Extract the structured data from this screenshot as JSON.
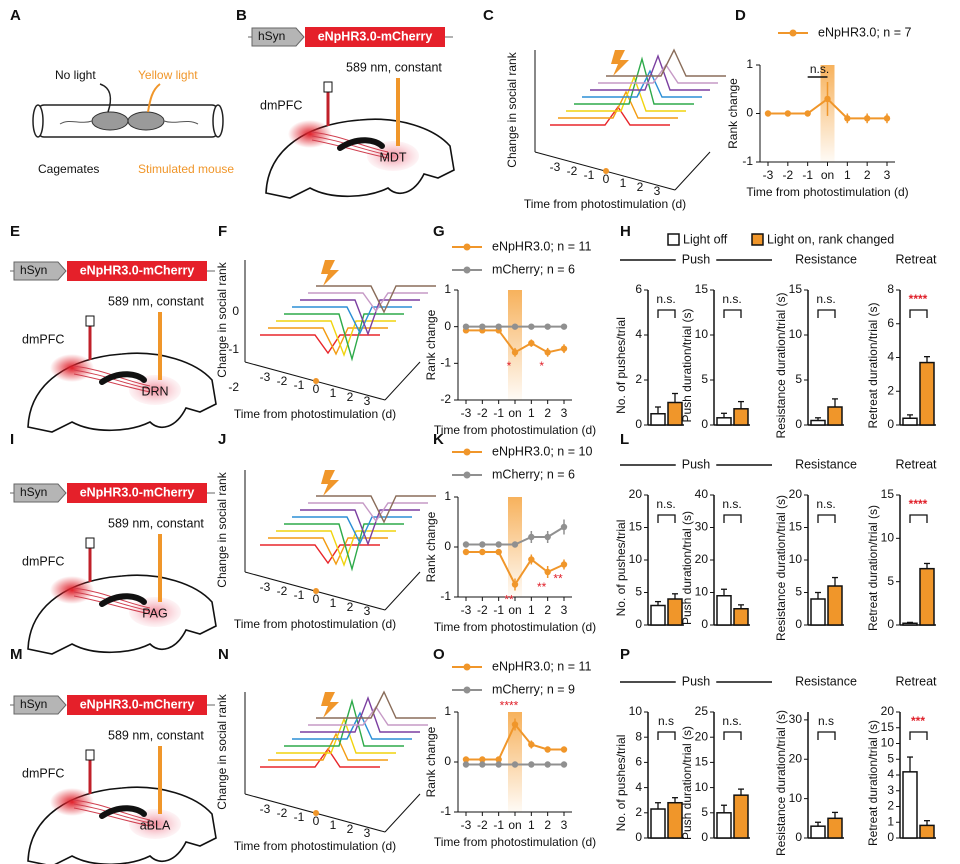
{
  "panel_labels": [
    "A",
    "B",
    "C",
    "D",
    "E",
    "F",
    "G",
    "H",
    "I",
    "J",
    "K",
    "L",
    "M",
    "N",
    "O",
    "P"
  ],
  "cage": {
    "left": "No light",
    "right": "Yellow light",
    "left_caption": "Cagemates",
    "right_caption": "Stimulated mouse"
  },
  "schematics": [
    {
      "promoter": "hSyn",
      "construct": "eNpHR3.0-mCherry",
      "light": "589 nm, constant",
      "region": "dmPFC",
      "target": "MDT"
    },
    {
      "promoter": "hSyn",
      "construct": "eNpHR3.0-mCherry",
      "light": "589 nm, constant",
      "region": "dmPFC",
      "target": "DRN"
    },
    {
      "promoter": "hSyn",
      "construct": "eNpHR3.0-mCherry",
      "light": "589 nm, constant",
      "region": "dmPFC",
      "target": "PAG"
    },
    {
      "promoter": "hSyn",
      "construct": "eNpHR3.0-mCherry",
      "light": "589 nm, constant",
      "region": "dmPFC",
      "target": "aBLA"
    }
  ],
  "panels_3d": [
    {
      "ylabel": "Change in social rank",
      "xlabel": "Time from photostimulation (d)",
      "xticks": [
        -3,
        -2,
        -1,
        0,
        1,
        2,
        3
      ]
    },
    {
      "ylabel": "Change in social rank",
      "xlabel": "Time from photostimulation (d)",
      "xticks": [
        -3,
        -2,
        -1,
        0,
        1,
        2,
        3
      ],
      "yticks": [
        0,
        -1,
        -2
      ]
    },
    {
      "ylabel": "Change in social rank",
      "xlabel": "Time from photostimulation (d)",
      "xticks": [
        -3,
        -2,
        -1,
        0,
        1,
        2,
        3
      ]
    },
    {
      "ylabel": "Change in social rank",
      "xlabel": "Time from photostimulation (d)",
      "xticks": [
        -3,
        -2,
        -1,
        0,
        1,
        2,
        3
      ]
    }
  ],
  "bar_legend": [
    {
      "name": "Light off",
      "color": "#ffffff"
    },
    {
      "name": "Light on, rank changed",
      "color": "#f0962a"
    }
  ],
  "chart_data": [
    {
      "type": "line",
      "categories": [
        "-3",
        "-2",
        "-1",
        "on",
        "1",
        "2",
        "3"
      ],
      "highlight": "on",
      "series": [
        {
          "name": "eNpHR3.0; n = 7",
          "color": "#f0962a",
          "values": [
            0,
            0,
            0,
            0.3,
            -0.1,
            -0.1,
            -0.1
          ],
          "errors": [
            0,
            0,
            0,
            0.35,
            0.1,
            0.1,
            0.1
          ]
        }
      ],
      "ylim": [
        -1,
        1
      ],
      "yticks": [
        -1,
        0,
        1
      ],
      "ylabel": "Rank change",
      "xlabel": "Time from photostimulation (d)",
      "annotations": [
        {
          "text": "n.s.",
          "index": 3
        }
      ]
    },
    {
      "type": "line",
      "categories": [
        "-3",
        "-2",
        "-1",
        "on",
        "1",
        "2",
        "3"
      ],
      "highlight": "on",
      "series": [
        {
          "name": "eNpHR3.0; n = 11",
          "color": "#f0962a",
          "values": [
            -0.1,
            -0.1,
            -0.1,
            -0.7,
            -0.45,
            -0.7,
            -0.6
          ],
          "errors": [
            0,
            0,
            0,
            0.12,
            0.1,
            0.12,
            0.12
          ]
        },
        {
          "name": "mCherry; n = 6",
          "color": "#909090",
          "values": [
            0,
            0,
            0,
            0,
            0,
            0,
            0
          ],
          "errors": [
            0,
            0,
            0,
            0,
            0,
            0,
            0
          ]
        }
      ],
      "ylim": [
        -2,
        1
      ],
      "yticks": [
        1,
        0,
        -1,
        -2
      ],
      "ylabel": "Rank change",
      "xlabel": "Time from photostimulation (d)",
      "annotations": [
        {
          "text": "*",
          "index": 3
        },
        {
          "text": "*",
          "index": 5
        }
      ]
    },
    {
      "type": "line",
      "categories": [
        "-3",
        "-2",
        "-1",
        "on",
        "1",
        "2",
        "3"
      ],
      "highlight": "on",
      "series": [
        {
          "name": "eNpHR3.0; n = 10",
          "color": "#f0962a",
          "values": [
            -0.1,
            -0.1,
            -0.1,
            -0.75,
            -0.25,
            -0.5,
            -0.35
          ],
          "errors": [
            0,
            0,
            0,
            0.12,
            0.1,
            0.12,
            0.1
          ]
        },
        {
          "name": "mCherry; n = 6",
          "color": "#909090",
          "values": [
            0.05,
            0.05,
            0.05,
            0.05,
            0.2,
            0.2,
            0.4
          ],
          "errors": [
            0,
            0,
            0,
            0,
            0.12,
            0.12,
            0.15
          ]
        }
      ],
      "ylim": [
        -1,
        1
      ],
      "yticks": [
        -1,
        0,
        1
      ],
      "ylabel": "Rank change",
      "xlabel": "Time from photostimulation (d)",
      "annotations": [
        {
          "text": "**",
          "index": 3
        },
        {
          "text": "**",
          "index": 5
        },
        {
          "text": "**",
          "index": 6
        }
      ]
    },
    {
      "type": "line",
      "categories": [
        "-3",
        "-2",
        "-1",
        "on",
        "1",
        "2",
        "3"
      ],
      "highlight": "on",
      "series": [
        {
          "name": "eNpHR3.0; n = 11",
          "color": "#f0962a",
          "values": [
            0.05,
            0.05,
            0.05,
            0.75,
            0.35,
            0.25,
            0.25
          ],
          "errors": [
            0,
            0,
            0,
            0.12,
            0.08,
            0.05,
            0.05
          ]
        },
        {
          "name": "mCherry; n = 9",
          "color": "#909090",
          "values": [
            -0.05,
            -0.05,
            -0.05,
            -0.05,
            -0.05,
            -0.05,
            -0.05
          ],
          "errors": [
            0,
            0,
            0,
            0,
            0,
            0,
            0
          ]
        }
      ],
      "ylim": [
        -1,
        1
      ],
      "yticks": [
        -1,
        0,
        1
      ],
      "ylabel": "Rank change",
      "xlabel": "Time from photostimulation (d)",
      "annotations": [
        {
          "text": "****",
          "index": 3
        }
      ]
    },
    {
      "type": "bar",
      "group": "Push",
      "ylabel": "No. of pushes/trial",
      "values": [
        0.5,
        1.0
      ],
      "errors": [
        0.3,
        0.4
      ],
      "ylim": [
        0,
        6
      ],
      "yticks": [
        0,
        2,
        4,
        6
      ],
      "annotation": "n.s."
    },
    {
      "type": "bar",
      "ylabel": "Push duration/trial (s)",
      "values": [
        0.8,
        1.8
      ],
      "errors": [
        0.5,
        0.8
      ],
      "ylim": [
        0,
        15
      ],
      "yticks": [
        0,
        5,
        10,
        15
      ],
      "annotation": "n.s."
    },
    {
      "type": "bar",
      "group": "Resistance",
      "ylabel": "Resistance duration/trial (s)",
      "values": [
        0.5,
        2.0
      ],
      "errors": [
        0.3,
        0.9
      ],
      "ylim": [
        0,
        15
      ],
      "yticks": [
        0,
        5,
        10,
        15
      ],
      "annotation": "n.s."
    },
    {
      "type": "bar",
      "group": "Retreat",
      "ylabel": "Retreat duration/trial (s)",
      "values": [
        0.4,
        3.7
      ],
      "errors": [
        0.2,
        0.35
      ],
      "ylim": [
        0,
        8
      ],
      "yticks": [
        0,
        2,
        4,
        6,
        8
      ],
      "annotation": "****"
    },
    {
      "type": "bar",
      "group": "Push",
      "ylabel": "No. of pushes/trial",
      "values": [
        3,
        4
      ],
      "errors": [
        0.6,
        0.8
      ],
      "ylim": [
        0,
        20
      ],
      "yticks": [
        0,
        5,
        10,
        15,
        20
      ],
      "annotation": "n.s."
    },
    {
      "type": "bar",
      "ylabel": "Push duration/trial (s)",
      "values": [
        9,
        5
      ],
      "errors": [
        2,
        1.2
      ],
      "ylim": [
        0,
        40
      ],
      "yticks": [
        0,
        10,
        20,
        30,
        40
      ],
      "annotation": "n.s."
    },
    {
      "type": "bar",
      "group": "Resistance",
      "ylabel": "Resistance duration/trial (s)",
      "values": [
        4,
        6
      ],
      "errors": [
        1,
        1.3
      ],
      "ylim": [
        0,
        20
      ],
      "yticks": [
        0,
        5,
        10,
        15,
        20
      ],
      "annotation": "n.s."
    },
    {
      "type": "bar",
      "group": "Retreat",
      "ylabel": "Retreat duration/trial (s)",
      "values": [
        0.2,
        6.5
      ],
      "errors": [
        0.1,
        0.6
      ],
      "ylim": [
        0,
        15
      ],
      "yticks": [
        0,
        5,
        10,
        15
      ],
      "annotation": "****"
    },
    {
      "type": "bar",
      "group": "Push",
      "ylabel": "No. of pushes/trial",
      "values": [
        2.3,
        2.8
      ],
      "errors": [
        0.5,
        0.4
      ],
      "ylim": [
        0,
        10
      ],
      "yticks": [
        0,
        2,
        4,
        6,
        8,
        10
      ],
      "annotation": "n.s"
    },
    {
      "type": "bar",
      "ylabel": "Push duration/trial (s)",
      "values": [
        5,
        8.5
      ],
      "errors": [
        1.5,
        1.2
      ],
      "ylim": [
        0,
        25
      ],
      "yticks": [
        0,
        5,
        10,
        15,
        20,
        25
      ],
      "annotation": "n.s."
    },
    {
      "type": "bar",
      "group": "Resistance",
      "ylabel": "Resistance duration/trial (s)",
      "values": [
        3,
        5
      ],
      "errors": [
        1,
        1.5
      ],
      "ylim": [
        0,
        32
      ],
      "yticks": [
        0,
        10,
        20,
        30
      ],
      "annotation": "n.s"
    },
    {
      "type": "bar",
      "group": "Retreat",
      "ylabel": "Retreat duration/trial (s)",
      "values": [
        4.2,
        0.8
      ],
      "errors": [
        1.5,
        0.3
      ],
      "ylim": [
        0,
        20
      ],
      "yticks": [
        0,
        1,
        2,
        3,
        4,
        5,
        10,
        15,
        20
      ],
      "broken_axis": true,
      "annotation": "***"
    }
  ]
}
